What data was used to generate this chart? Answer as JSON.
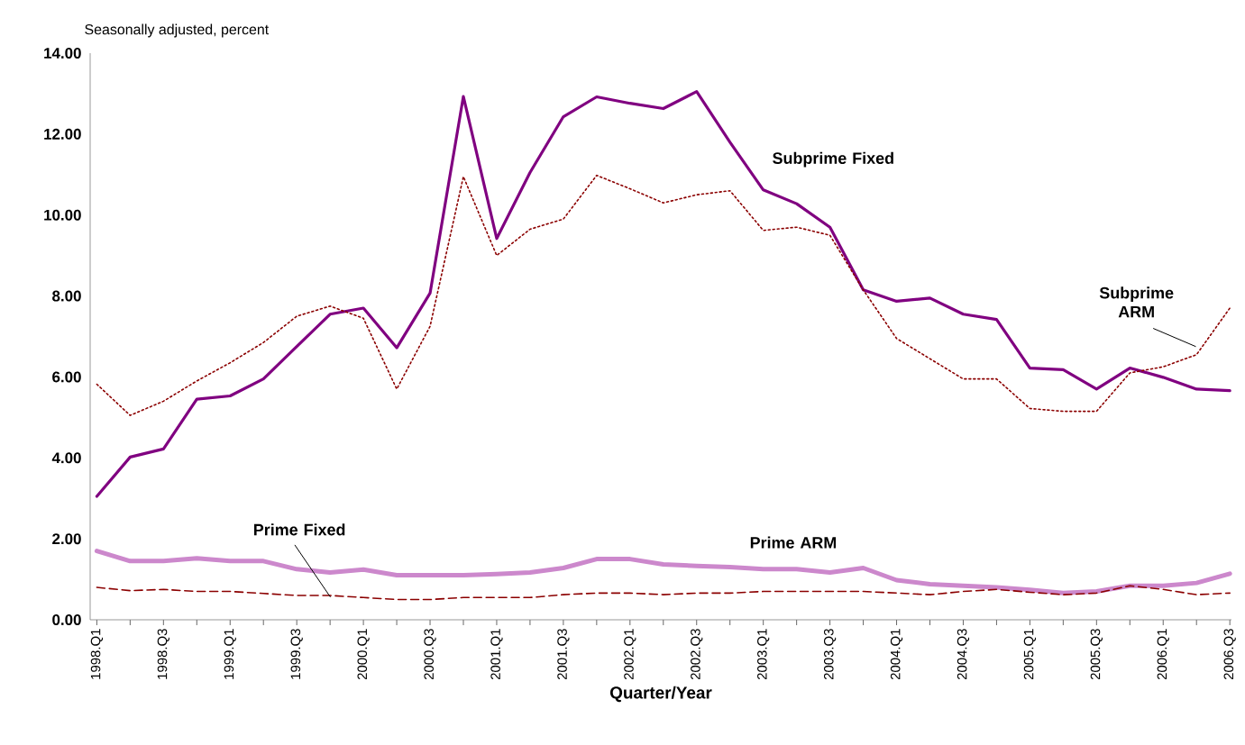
{
  "chart_data": {
    "type": "line",
    "ylabel": "Seasonally adjusted, percent",
    "xlabel": "Quarter/Year",
    "categories": [
      "1998.Q1",
      null,
      "1998.Q3",
      null,
      "1999.Q1",
      null,
      "1999.Q3",
      null,
      "2000.Q1",
      null,
      "2000.Q3",
      null,
      "2001.Q1",
      null,
      "2001.Q3",
      null,
      "2002.Q1",
      null,
      "2002.Q3",
      null,
      "2003.Q1",
      null,
      "2003.Q3",
      null,
      "2004.Q1",
      null,
      "2004.Q3",
      null,
      "2005.Q1",
      null,
      "2005.Q3",
      null,
      "2006.Q1",
      null,
      "2006.Q3"
    ],
    "series": [
      {
        "name": "Subprime Fixed",
        "color": "#800080",
        "line_style": "solid",
        "values": [
          3.05,
          4.02,
          4.22,
          5.45,
          5.53,
          5.95,
          6.75,
          7.55,
          7.7,
          6.72,
          8.07,
          12.93,
          9.42,
          11.05,
          12.43,
          12.92,
          12.76,
          12.63,
          13.05,
          11.8,
          10.62,
          10.28,
          9.7,
          8.15,
          7.87,
          7.95,
          7.55,
          7.42,
          6.22,
          6.18,
          5.7,
          6.22,
          5.99,
          5.7,
          5.66
        ]
      },
      {
        "name": "Subprime ARM",
        "color": "#8b0000",
        "line_style": "dotted",
        "values": [
          5.82,
          5.05,
          5.4,
          5.9,
          6.35,
          6.85,
          7.5,
          7.75,
          7.45,
          5.7,
          7.25,
          10.95,
          9.0,
          9.65,
          9.9,
          10.98,
          10.65,
          10.3,
          10.5,
          10.6,
          9.62,
          9.7,
          9.5,
          8.15,
          6.95,
          6.45,
          5.95,
          5.95,
          5.22,
          5.15,
          5.15,
          6.1,
          6.25,
          6.55,
          7.7
        ]
      },
      {
        "name": "Prime Fixed",
        "color": "#8b0000",
        "line_style": "dashed",
        "values": [
          0.8,
          0.72,
          0.75,
          0.7,
          0.7,
          0.65,
          0.6,
          0.6,
          0.55,
          0.5,
          0.5,
          0.55,
          0.55,
          0.55,
          0.62,
          0.66,
          0.66,
          0.62,
          0.66,
          0.66,
          0.7,
          0.7,
          0.7,
          0.7,
          0.66,
          0.62,
          0.7,
          0.75,
          0.68,
          0.62,
          0.66,
          0.84,
          0.75,
          0.62,
          0.66
        ]
      },
      {
        "name": "Prime ARM",
        "color": "#cc88cc",
        "line_style": "solid",
        "values": [
          1.7,
          1.45,
          1.45,
          1.52,
          1.45,
          1.45,
          1.25,
          1.17,
          1.24,
          1.1,
          1.1,
          1.1,
          1.13,
          1.17,
          1.28,
          1.5,
          1.5,
          1.37,
          1.33,
          1.3,
          1.25,
          1.25,
          1.17,
          1.28,
          0.98,
          0.88,
          0.84,
          0.8,
          0.74,
          0.66,
          0.7,
          0.84,
          0.84,
          0.91,
          1.14
        ]
      }
    ],
    "ylim": [
      0,
      14
    ],
    "yticks": [
      {
        "value": 0,
        "label": "0.00"
      },
      {
        "value": 2,
        "label": "2.00"
      },
      {
        "value": 4,
        "label": "4.00"
      },
      {
        "value": 6,
        "label": "6.00"
      },
      {
        "value": 8,
        "label": "8.00"
      },
      {
        "value": 10,
        "label": "10.00"
      },
      {
        "value": 12,
        "label": "12.00"
      },
      {
        "value": 14,
        "label": "14.00"
      }
    ],
    "grid": false,
    "legend": false,
    "marker": "none"
  }
}
